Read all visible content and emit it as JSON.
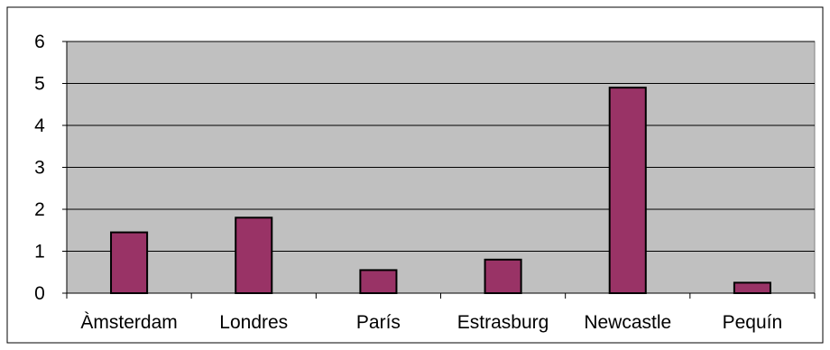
{
  "chart_data": {
    "type": "bar",
    "categories": [
      "Àmsterdam",
      "Londres",
      "París",
      "Estrasburg",
      "Newcastle",
      "Pequín"
    ],
    "values": [
      1.45,
      1.8,
      0.55,
      0.8,
      4.9,
      0.25
    ],
    "ylim": [
      0,
      6
    ],
    "yticks": [
      0,
      1,
      2,
      3,
      4,
      5,
      6
    ],
    "grid": true,
    "legend": "none",
    "colors": {
      "plot_background": "#c0c0c0",
      "bar_fill": "#993366",
      "bar_stroke": "#000000",
      "gridline": "#000000"
    }
  }
}
